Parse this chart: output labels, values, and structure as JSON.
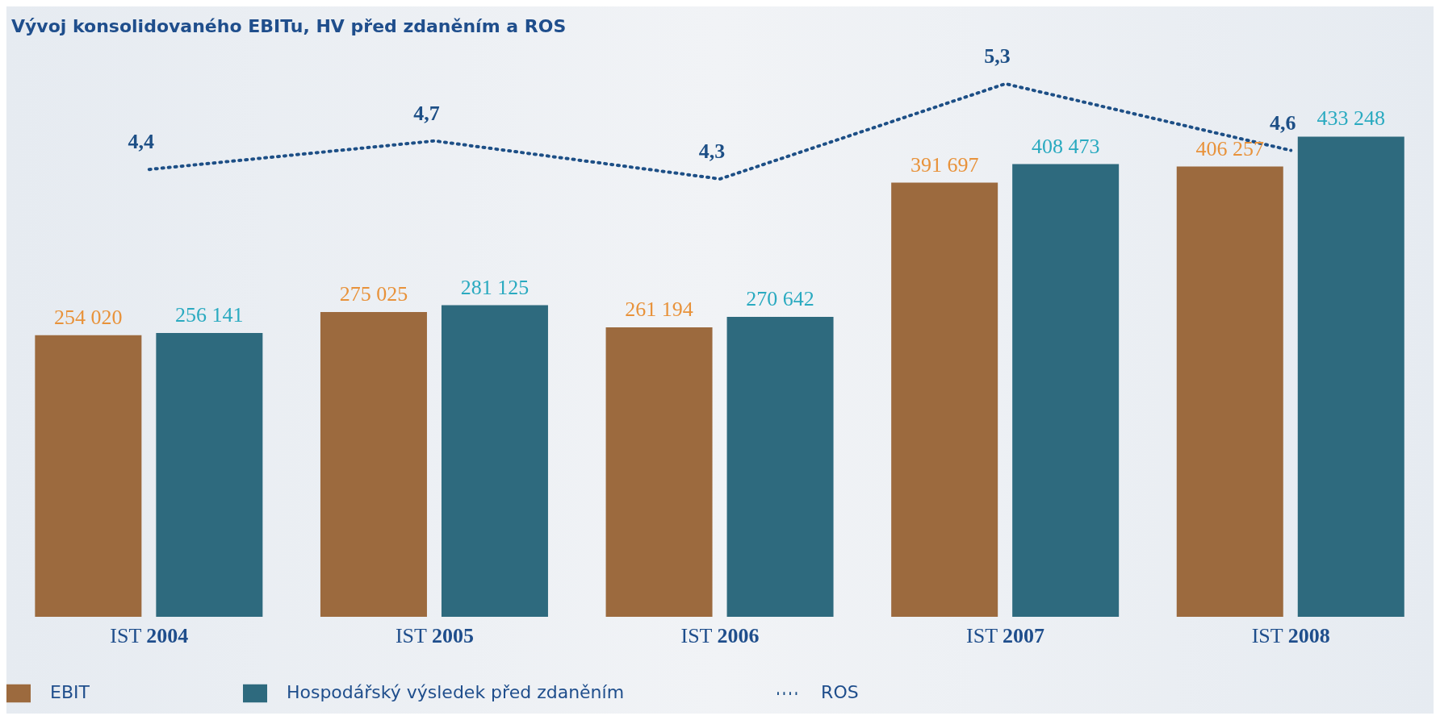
{
  "chart_data": {
    "type": "bar",
    "title": "Vývoj konsolidovaného EBITu, HV před zdaněním a ROS",
    "categories": [
      "IST 2004",
      "IST 2005",
      "IST 2006",
      "IST 2007",
      "IST 2008"
    ],
    "series": [
      {
        "name": "EBIT",
        "color": "#9c6a3e",
        "values": [
          254020,
          275025,
          261194,
          391697,
          406257
        ],
        "value_labels": [
          "254 020",
          "275 025",
          "261 194",
          "391 697",
          "406 257"
        ]
      },
      {
        "name": "Hospodářský výsledek před zdaněním",
        "color": "#2e6a7e",
        "values": [
          256141,
          281125,
          270642,
          408473,
          433248
        ],
        "value_labels": [
          "256 141",
          "281 125",
          "270 642",
          "408 473",
          "433 248"
        ]
      },
      {
        "name": "ROS",
        "type": "line",
        "axis": "y2",
        "color": "#1d4f86",
        "line_style": "dotted",
        "values": [
          4.4,
          4.7,
          4.3,
          5.3,
          4.6
        ],
        "value_labels": [
          "4,4",
          "4,7",
          "4,3",
          "5,3",
          "4,6"
        ]
      }
    ],
    "legend": "bottom",
    "marker": "none"
  }
}
